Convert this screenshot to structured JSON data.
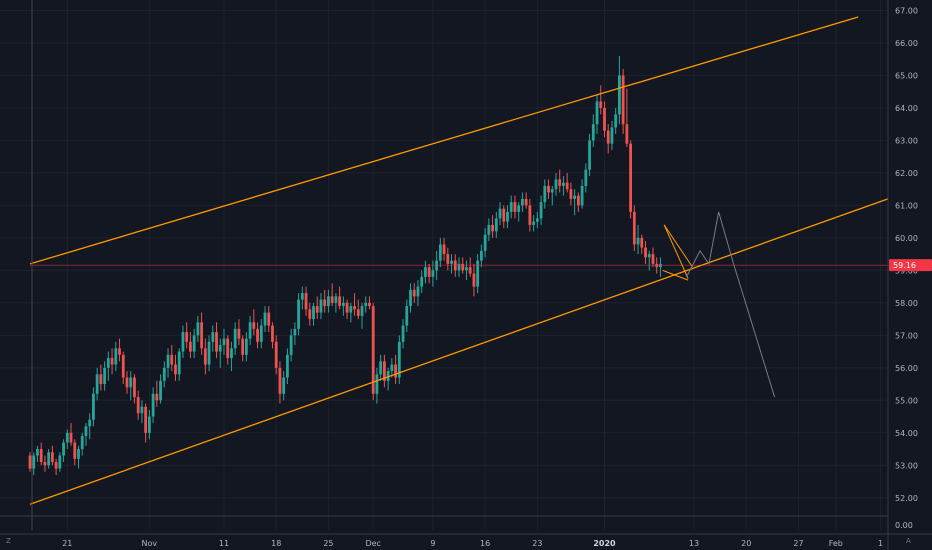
{
  "chart_data": {
    "type": "candlestick",
    "title": "",
    "y_ticks": [
      "52.00",
      "53.00",
      "54.00",
      "55.00",
      "56.00",
      "57.00",
      "58.00",
      "59.00",
      "60.00",
      "61.00",
      "62.00",
      "63.00",
      "64.00",
      "65.00",
      "66.00",
      "67.00"
    ],
    "y_ticks_lower_pane": [
      "0.00"
    ],
    "x_ticks": [
      {
        "label": "21",
        "bold": false,
        "day": 20
      },
      {
        "label": "Nov",
        "bold": false,
        "day": 31
      },
      {
        "label": "11",
        "bold": false,
        "day": 41
      },
      {
        "label": "18",
        "bold": false,
        "day": 48
      },
      {
        "label": "25",
        "bold": false,
        "day": 55
      },
      {
        "label": "Dec",
        "bold": false,
        "day": 61
      },
      {
        "label": "9",
        "bold": false,
        "day": 69
      },
      {
        "label": "16",
        "bold": false,
        "day": 76
      },
      {
        "label": "23",
        "bold": false,
        "day": 83
      },
      {
        "label": "2020",
        "bold": true,
        "day": 92
      },
      {
        "label": "13",
        "bold": false,
        "day": 104
      },
      {
        "label": "20",
        "bold": false,
        "day": 111
      },
      {
        "label": "27",
        "bold": false,
        "day": 118
      },
      {
        "label": "Feb",
        "bold": false,
        "day": 123
      },
      {
        "label": "1",
        "bold": false,
        "day": 129
      }
    ],
    "ylim": [
      51.5,
      67.2
    ],
    "day_range": [
      15,
      130
    ],
    "current_price": {
      "value": 59.16,
      "label": "59.16",
      "line_start_day": 15,
      "color": "#f23645"
    },
    "channel": {
      "upper": [
        [
          15,
          59.2
        ],
        [
          126,
          66.8
        ]
      ],
      "lower": [
        [
          15,
          51.8
        ],
        [
          130,
          61.2
        ]
      ],
      "color": "#ff9800"
    },
    "wedge": {
      "lines": [
        [
          [
            100.0,
            60.4
          ],
          [
            103.8,
            59.1
          ]
        ],
        [
          [
            99.8,
            59.0
          ],
          [
            103.2,
            58.7
          ]
        ],
        [
          [
            100.0,
            60.4
          ],
          [
            103.2,
            58.75
          ]
        ]
      ],
      "color": "#ff9800"
    },
    "projection": {
      "points": [
        [
          103.0,
          58.8
        ],
        [
          104.8,
          59.6
        ],
        [
          106.0,
          59.2
        ],
        [
          107.3,
          60.8
        ],
        [
          109.3,
          59.2
        ],
        [
          114.8,
          55.1
        ]
      ],
      "color": "#787b86"
    },
    "candles": [
      [
        15.0,
        53.3,
        53.4,
        52.8,
        52.9
      ],
      [
        15.5,
        52.9,
        53.4,
        52.7,
        53.3
      ],
      [
        16.0,
        53.3,
        53.6,
        53.1,
        53.5
      ],
      [
        16.5,
        53.5,
        53.7,
        53.0,
        53.1
      ],
      [
        17.0,
        53.1,
        53.3,
        52.8,
        53.0
      ],
      [
        17.5,
        53.0,
        53.5,
        52.9,
        53.4
      ],
      [
        18.0,
        53.4,
        53.6,
        53.0,
        53.1
      ],
      [
        18.5,
        53.1,
        53.2,
        52.7,
        52.9
      ],
      [
        19.0,
        52.9,
        53.4,
        52.8,
        53.3
      ],
      [
        19.5,
        53.3,
        53.8,
        53.1,
        53.7
      ],
      [
        20.0,
        53.7,
        54.1,
        53.5,
        54.0
      ],
      [
        20.5,
        54.0,
        54.3,
        53.6,
        53.7
      ],
      [
        21.0,
        53.7,
        53.8,
        53.0,
        53.2
      ],
      [
        21.5,
        53.2,
        53.6,
        52.9,
        53.5
      ],
      [
        22.0,
        53.5,
        54.0,
        53.3,
        53.9
      ],
      [
        22.5,
        53.9,
        54.3,
        53.6,
        54.2
      ],
      [
        23.0,
        54.2,
        54.6,
        53.8,
        54.4
      ],
      [
        23.5,
        54.4,
        55.4,
        54.2,
        55.2
      ],
      [
        24.0,
        55.2,
        56.0,
        55.0,
        55.8
      ],
      [
        24.5,
        55.8,
        56.1,
        55.3,
        55.5
      ],
      [
        25.0,
        55.5,
        56.2,
        55.3,
        56.0
      ],
      [
        25.5,
        56.0,
        56.5,
        55.6,
        56.3
      ],
      [
        26.0,
        56.3,
        56.6,
        55.8,
        56.1
      ],
      [
        26.5,
        56.1,
        56.8,
        55.9,
        56.6
      ],
      [
        27.0,
        56.6,
        56.9,
        56.2,
        56.4
      ],
      [
        27.5,
        56.4,
        56.5,
        55.5,
        55.7
      ],
      [
        28.0,
        55.7,
        55.9,
        55.2,
        55.4
      ],
      [
        28.5,
        55.4,
        55.9,
        55.0,
        55.7
      ],
      [
        29.0,
        55.7,
        55.8,
        54.9,
        55.1
      ],
      [
        29.5,
        55.1,
        55.3,
        54.4,
        54.6
      ],
      [
        30.0,
        54.6,
        55.0,
        54.3,
        54.8
      ],
      [
        30.5,
        54.8,
        54.9,
        53.7,
        54.0
      ],
      [
        31.0,
        54.0,
        54.7,
        53.8,
        54.5
      ],
      [
        31.5,
        54.5,
        55.4,
        54.3,
        55.2
      ],
      [
        32.0,
        55.2,
        55.6,
        54.8,
        55.0
      ],
      [
        32.5,
        55.0,
        55.8,
        54.9,
        55.6
      ],
      [
        33.0,
        55.6,
        56.2,
        55.4,
        56.0
      ],
      [
        33.5,
        56.0,
        56.6,
        55.7,
        56.4
      ],
      [
        34.0,
        56.4,
        56.7,
        55.9,
        56.1
      ],
      [
        34.5,
        56.1,
        56.4,
        55.6,
        55.8
      ],
      [
        35.0,
        55.8,
        56.6,
        55.6,
        56.5
      ],
      [
        35.5,
        56.5,
        57.3,
        56.3,
        57.1
      ],
      [
        36.0,
        57.1,
        57.4,
        56.6,
        56.8
      ],
      [
        36.5,
        56.8,
        57.1,
        56.3,
        56.5
      ],
      [
        37.0,
        56.5,
        57.2,
        56.3,
        57.0
      ],
      [
        37.5,
        57.0,
        57.6,
        56.8,
        57.4
      ],
      [
        38.0,
        57.4,
        57.7,
        56.4,
        56.6
      ],
      [
        38.5,
        56.6,
        56.9,
        55.8,
        56.1
      ],
      [
        39.0,
        56.1,
        57.0,
        55.9,
        56.8
      ],
      [
        39.5,
        56.8,
        57.3,
        56.5,
        57.1
      ],
      [
        40.0,
        57.1,
        57.4,
        56.3,
        56.5
      ],
      [
        40.5,
        56.5,
        56.9,
        56.0,
        56.7
      ],
      [
        41.0,
        56.7,
        57.2,
        56.4,
        56.9
      ],
      [
        41.5,
        56.9,
        57.0,
        56.1,
        56.3
      ],
      [
        42.0,
        56.3,
        56.8,
        55.9,
        56.6
      ],
      [
        42.5,
        56.6,
        57.4,
        56.4,
        57.2
      ],
      [
        43.0,
        57.2,
        57.5,
        56.7,
        56.9
      ],
      [
        43.5,
        56.9,
        57.0,
        56.2,
        56.4
      ],
      [
        44.0,
        56.4,
        57.1,
        56.2,
        56.9
      ],
      [
        44.5,
        56.9,
        57.6,
        56.7,
        57.4
      ],
      [
        45.0,
        57.4,
        57.8,
        57.0,
        57.2
      ],
      [
        45.5,
        57.2,
        57.4,
        56.6,
        56.8
      ],
      [
        46.0,
        56.8,
        57.5,
        56.6,
        57.3
      ],
      [
        46.5,
        57.3,
        57.9,
        57.1,
        57.7
      ],
      [
        47.0,
        57.7,
        57.9,
        57.1,
        57.3
      ],
      [
        47.5,
        57.3,
        57.4,
        56.6,
        56.8
      ],
      [
        48.0,
        56.8,
        57.0,
        55.8,
        56.0
      ],
      [
        48.5,
        56.0,
        56.2,
        54.9,
        55.2
      ],
      [
        49.0,
        55.2,
        55.9,
        55.0,
        55.7
      ],
      [
        49.5,
        55.7,
        56.6,
        55.5,
        56.4
      ],
      [
        50.0,
        56.4,
        57.2,
        56.2,
        57.0
      ],
      [
        50.5,
        57.0,
        57.4,
        56.7,
        57.2
      ],
      [
        51.0,
        57.2,
        58.3,
        57.0,
        58.1
      ],
      [
        51.5,
        58.1,
        58.5,
        57.8,
        58.3
      ],
      [
        52.0,
        58.3,
        58.5,
        57.6,
        57.8
      ],
      [
        52.5,
        57.8,
        58.0,
        57.3,
        57.5
      ],
      [
        53.0,
        57.5,
        58.0,
        57.3,
        57.9
      ],
      [
        53.5,
        57.9,
        58.2,
        57.5,
        57.7
      ],
      [
        54.0,
        57.7,
        58.3,
        57.5,
        58.1
      ],
      [
        54.5,
        58.1,
        58.4,
        57.7,
        57.9
      ],
      [
        55.0,
        57.9,
        58.4,
        57.7,
        58.2
      ],
      [
        55.5,
        58.2,
        58.6,
        57.9,
        58.0
      ],
      [
        56.0,
        58.0,
        58.3,
        57.7,
        58.2
      ],
      [
        56.5,
        58.2,
        58.5,
        57.8,
        57.9
      ],
      [
        57.0,
        57.9,
        58.2,
        57.6,
        58.0
      ],
      [
        57.5,
        58.0,
        58.1,
        57.5,
        57.7
      ],
      [
        58.0,
        57.7,
        58.0,
        57.4,
        57.9
      ],
      [
        58.5,
        57.9,
        58.3,
        57.6,
        57.8
      ],
      [
        59.0,
        57.8,
        58.1,
        57.5,
        57.6
      ],
      [
        59.5,
        57.6,
        58.0,
        57.2,
        57.9
      ],
      [
        60.0,
        57.9,
        58.2,
        57.7,
        58.0
      ],
      [
        60.5,
        58.0,
        58.2,
        57.8,
        57.9
      ],
      [
        61.0,
        57.9,
        58.0,
        55.0,
        55.2
      ],
      [
        61.5,
        55.2,
        56.0,
        54.9,
        55.8
      ],
      [
        62.0,
        55.8,
        56.4,
        55.6,
        56.2
      ],
      [
        62.5,
        56.2,
        56.4,
        55.4,
        55.6
      ],
      [
        63.0,
        55.6,
        56.0,
        55.3,
        55.9
      ],
      [
        63.5,
        55.9,
        56.3,
        55.7,
        56.1
      ],
      [
        64.0,
        56.1,
        56.4,
        55.5,
        55.7
      ],
      [
        64.5,
        55.7,
        57.0,
        55.5,
        56.8
      ],
      [
        65.0,
        56.8,
        57.5,
        56.6,
        57.3
      ],
      [
        65.5,
        57.3,
        58.1,
        57.1,
        57.9
      ],
      [
        66.0,
        57.9,
        58.6,
        57.7,
        58.4
      ],
      [
        66.5,
        58.4,
        58.6,
        58.0,
        58.2
      ],
      [
        67.0,
        58.2,
        58.7,
        57.9,
        58.5
      ],
      [
        67.5,
        58.5,
        59.0,
        58.3,
        58.8
      ],
      [
        68.0,
        58.8,
        59.3,
        58.6,
        59.1
      ],
      [
        68.5,
        59.1,
        59.2,
        58.6,
        58.8
      ],
      [
        69.0,
        58.8,
        59.3,
        58.5,
        59.0
      ],
      [
        69.5,
        59.0,
        59.6,
        58.7,
        59.3
      ],
      [
        70.0,
        59.3,
        60.0,
        59.1,
        59.8
      ],
      [
        70.5,
        59.8,
        60.0,
        59.3,
        59.5
      ],
      [
        71.0,
        59.5,
        59.7,
        59.0,
        59.2
      ],
      [
        71.5,
        59.2,
        59.5,
        58.9,
        59.3
      ],
      [
        72.0,
        59.3,
        59.5,
        58.8,
        59.0
      ],
      [
        72.5,
        59.0,
        59.4,
        58.8,
        59.2
      ],
      [
        73.0,
        59.2,
        59.4,
        58.9,
        59.0
      ],
      [
        73.5,
        59.0,
        59.3,
        58.7,
        59.1
      ],
      [
        74.0,
        59.1,
        59.4,
        58.8,
        58.9
      ],
      [
        74.5,
        58.9,
        59.2,
        58.2,
        58.5
      ],
      [
        75.0,
        58.5,
        59.5,
        58.3,
        59.3
      ],
      [
        75.5,
        59.3,
        59.8,
        59.1,
        59.6
      ],
      [
        76.0,
        59.6,
        60.3,
        59.4,
        60.1
      ],
      [
        76.5,
        60.1,
        60.6,
        59.9,
        60.4
      ],
      [
        77.0,
        60.4,
        60.7,
        60.0,
        60.2
      ],
      [
        77.5,
        60.2,
        60.8,
        60.0,
        60.6
      ],
      [
        78.0,
        60.6,
        61.1,
        60.4,
        60.9
      ],
      [
        78.5,
        60.9,
        61.0,
        60.3,
        60.5
      ],
      [
        79.0,
        60.5,
        61.0,
        60.3,
        60.8
      ],
      [
        79.5,
        60.8,
        61.3,
        60.6,
        61.1
      ],
      [
        80.0,
        61.1,
        61.3,
        60.6,
        60.8
      ],
      [
        80.5,
        60.8,
        61.1,
        60.5,
        61.0
      ],
      [
        81.0,
        61.0,
        61.4,
        60.8,
        61.2
      ],
      [
        81.5,
        61.2,
        61.4,
        60.9,
        61.0
      ],
      [
        82.0,
        61.0,
        61.2,
        60.2,
        60.4
      ],
      [
        82.5,
        60.4,
        60.7,
        60.2,
        60.5
      ],
      [
        83.0,
        60.5,
        60.8,
        60.3,
        60.6
      ],
      [
        83.5,
        60.6,
        61.3,
        60.4,
        61.1
      ],
      [
        84.0,
        61.1,
        61.8,
        60.9,
        61.6
      ],
      [
        84.5,
        61.6,
        61.8,
        61.2,
        61.4
      ],
      [
        85.0,
        61.4,
        61.6,
        61.0,
        61.5
      ],
      [
        85.5,
        61.5,
        62.0,
        61.3,
        61.8
      ],
      [
        86.0,
        61.8,
        62.1,
        61.4,
        61.6
      ],
      [
        86.5,
        61.6,
        61.9,
        61.3,
        61.7
      ],
      [
        87.0,
        61.7,
        62.0,
        61.4,
        61.5
      ],
      [
        87.5,
        61.5,
        61.7,
        61.0,
        61.2
      ],
      [
        88.0,
        61.2,
        61.5,
        60.7,
        61.3
      ],
      [
        88.5,
        61.3,
        61.4,
        60.8,
        61.0
      ],
      [
        89.0,
        61.0,
        61.8,
        60.9,
        61.6
      ],
      [
        89.5,
        61.6,
        62.3,
        61.4,
        62.1
      ],
      [
        90.0,
        62.1,
        63.2,
        61.9,
        63.0
      ],
      [
        90.5,
        63.0,
        63.8,
        62.8,
        63.5
      ],
      [
        91.0,
        63.5,
        64.4,
        63.2,
        64.2
      ],
      [
        91.5,
        64.2,
        64.7,
        63.8,
        64.0
      ],
      [
        92.0,
        64.0,
        64.2,
        63.1,
        63.3
      ],
      [
        92.5,
        63.3,
        63.5,
        62.6,
        62.9
      ],
      [
        93.0,
        62.9,
        63.6,
        62.7,
        63.4
      ],
      [
        93.5,
        63.4,
        64.0,
        63.2,
        63.8
      ],
      [
        94.0,
        63.8,
        65.6,
        63.5,
        65.0
      ],
      [
        94.5,
        65.0,
        65.2,
        63.2,
        63.5
      ],
      [
        95.0,
        63.5,
        64.6,
        62.8,
        62.9
      ],
      [
        95.5,
        62.9,
        63.0,
        60.6,
        60.8
      ],
      [
        96.0,
        60.8,
        61.0,
        59.6,
        59.8
      ],
      [
        96.5,
        59.8,
        60.4,
        59.5,
        60.0
      ],
      [
        97.0,
        60.0,
        60.1,
        59.5,
        59.7
      ],
      [
        97.5,
        59.7,
        59.9,
        59.2,
        59.4
      ],
      [
        98.0,
        59.4,
        59.6,
        59.0,
        59.5
      ],
      [
        98.5,
        59.5,
        59.7,
        59.1,
        59.2
      ],
      [
        99.0,
        59.2,
        59.4,
        58.9,
        59.1
      ],
      [
        99.5,
        59.1,
        59.4,
        58.8,
        59.2
      ]
    ]
  },
  "toolbar": {
    "bottom_left": "Z",
    "bottom_right": "A"
  }
}
